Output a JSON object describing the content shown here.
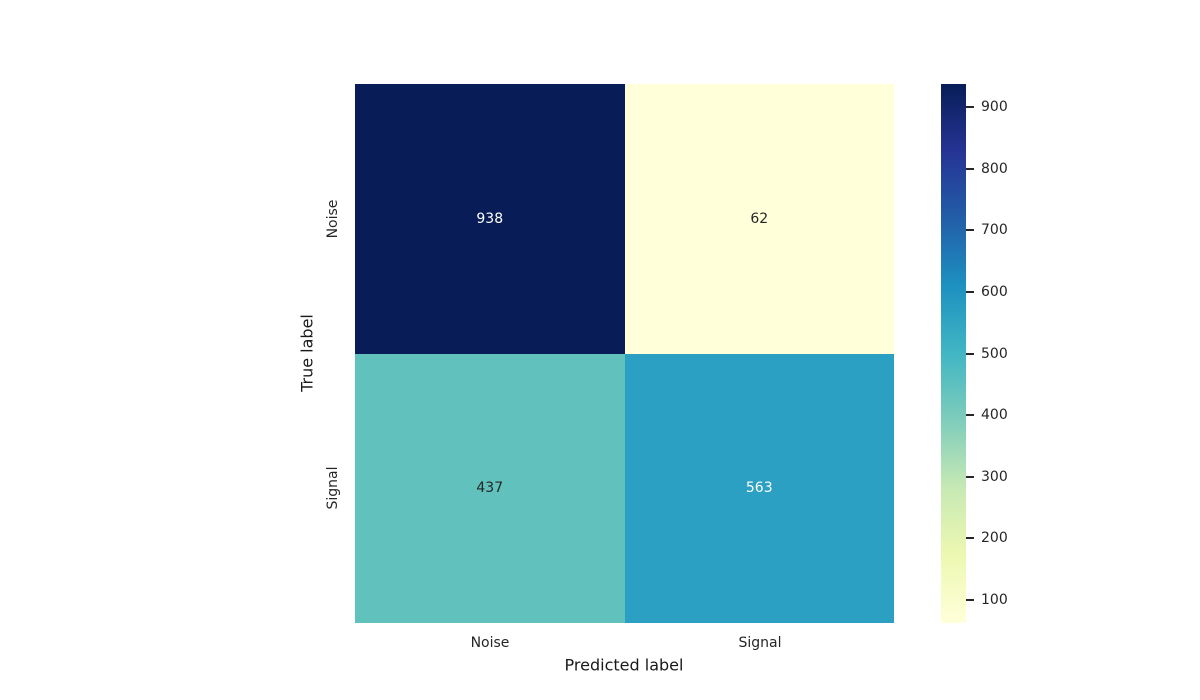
{
  "figure": {
    "background_color": "#ffffff",
    "text_color": "#262626"
  },
  "chart_data": {
    "type": "heatmap",
    "title": "",
    "xlabel": "Predicted label",
    "ylabel": "True label",
    "x_categories": [
      "Noise",
      "Signal"
    ],
    "y_categories": [
      "Noise",
      "Signal"
    ],
    "matrix": [
      [
        938,
        62
      ],
      [
        437,
        563
      ]
    ],
    "cell_colors": [
      [
        "#081d58",
        "#ffffd9"
      ],
      [
        "#61c1bd",
        "#2ba0c3"
      ]
    ],
    "cell_text_colors": [
      [
        "#ffffff",
        "#262626"
      ],
      [
        "#262626",
        "#ffffff"
      ]
    ],
    "vmin": 62,
    "vmax": 938,
    "grid": false,
    "legend": "colorbar-right",
    "colorbar": {
      "ticks": [
        100,
        200,
        300,
        400,
        500,
        600,
        700,
        800,
        900
      ],
      "colormap_name": "YlGnBu",
      "gradient_stops_bottom_to_top": [
        "#ffffd9",
        "#edf8b1",
        "#c7e9b4",
        "#7fcdbb",
        "#41b6c4",
        "#1d91c0",
        "#225ea8",
        "#253494",
        "#081d58"
      ]
    }
  }
}
